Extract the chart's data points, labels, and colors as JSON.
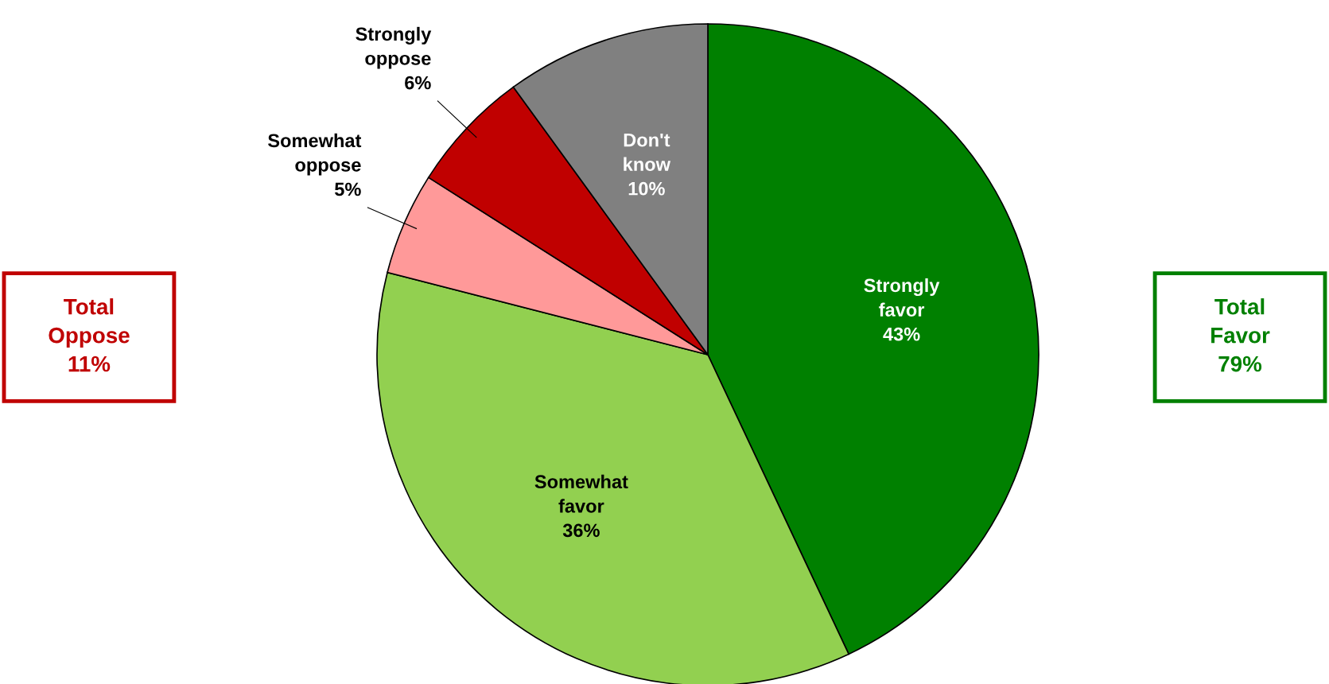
{
  "chart_data": {
    "type": "pie",
    "categories": [
      "Strongly favor",
      "Somewhat favor",
      "Somewhat oppose",
      "Strongly oppose",
      "Don't know"
    ],
    "values": [
      43,
      36,
      5,
      6,
      10
    ],
    "colors": [
      "#008000",
      "#92d050",
      "#ff9999",
      "#c00000",
      "#808080"
    ],
    "value_labels": [
      "43%",
      "36%",
      "5%",
      "6%",
      "10%"
    ],
    "legend": false,
    "annotations": [
      "Total\nOppose\n11%",
      "Total\nFavor\n79%"
    ]
  }
}
